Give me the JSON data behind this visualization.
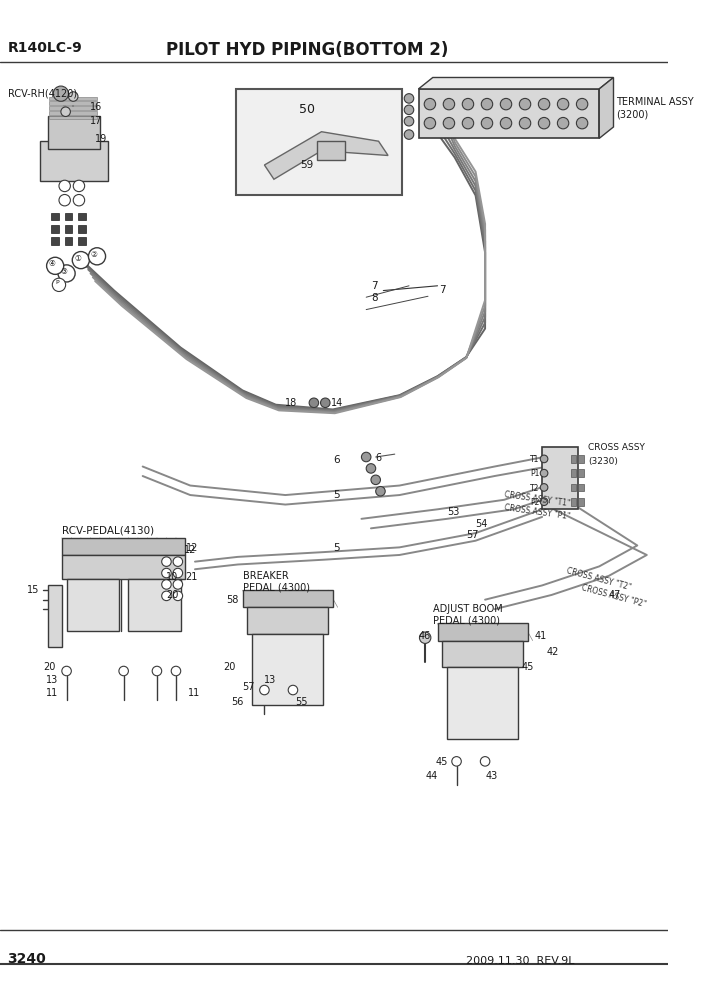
{
  "title": "PILOT HYD PIPING(BOTTOM 2)",
  "model": "R140LC-9",
  "page": "3240",
  "date": "2009.11.30  REV.9L",
  "bg_color": "#ffffff",
  "lc": "#3a3a3a",
  "pipe_colors": [
    "#888888",
    "#999999",
    "#aaaaaa",
    "#bbbbbb",
    "#cccccc",
    "#dddddd"
  ],
  "pipe_lw": 1.4,
  "thin_lw": 0.8,
  "comp_fc": "#e8e8e8",
  "comp_ec": "#3a3a3a"
}
